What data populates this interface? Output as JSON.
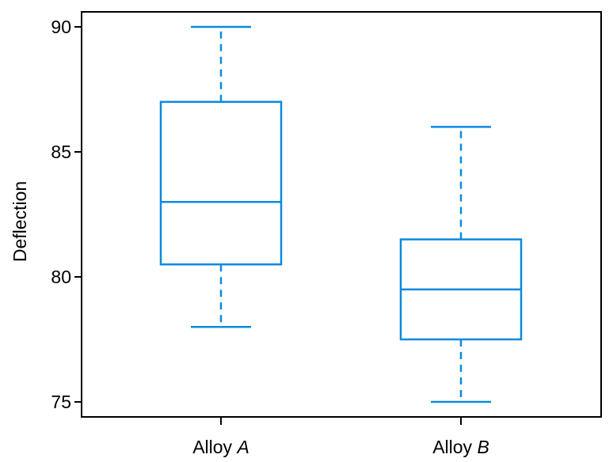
{
  "chart_data": {
    "type": "boxplot",
    "title": "",
    "xlabel": "",
    "ylabel": "Deflection",
    "ylim": [
      74.4,
      90.6
    ],
    "yticks": [
      75,
      80,
      85,
      90
    ],
    "grid": false,
    "colors": {
      "box": "#0a8ae0",
      "axis": "#000000"
    },
    "categories": [
      {
        "prefix": "Alloy ",
        "suffix": "A"
      },
      {
        "prefix": "Alloy ",
        "suffix": "B"
      }
    ],
    "boxes": [
      {
        "whisker_low": 78,
        "q1": 80.5,
        "median": 83,
        "q3": 87,
        "whisker_high": 90
      },
      {
        "whisker_low": 75,
        "q1": 77.5,
        "median": 79.5,
        "q3": 81.5,
        "whisker_high": 86
      }
    ]
  }
}
